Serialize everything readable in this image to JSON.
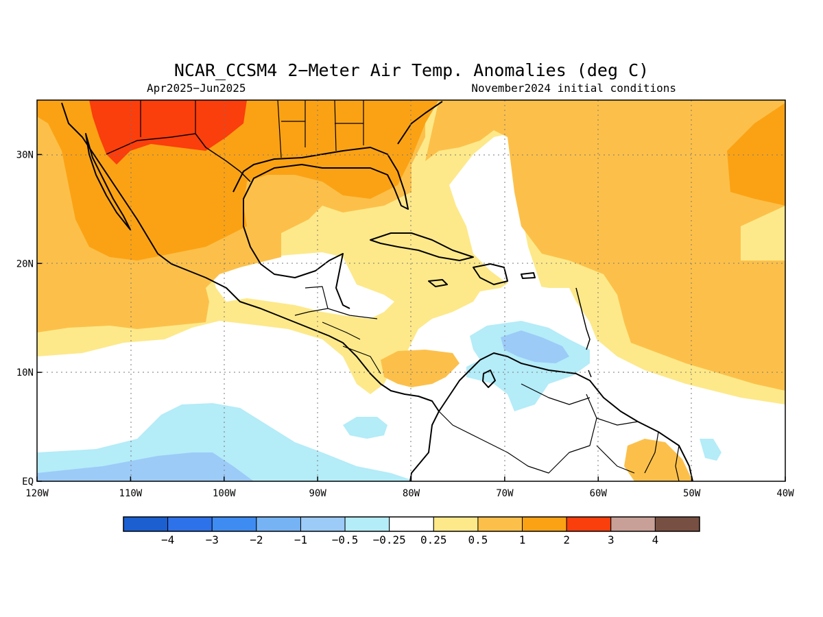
{
  "figure": {
    "title": "NCAR_CCSM4 2−Meter Air Temp. Anomalies (deg C)",
    "subtitle_left": "Apr2025−Jun2025",
    "subtitle_right": "November2024 initial conditions"
  },
  "map": {
    "lon_range": [
      -120,
      -40
    ],
    "lat_range": [
      0,
      35
    ],
    "x_ticks": [
      {
        "value": -120,
        "label": "120W"
      },
      {
        "value": -110,
        "label": "110W"
      },
      {
        "value": -100,
        "label": "100W"
      },
      {
        "value": -90,
        "label": "90W"
      },
      {
        "value": -80,
        "label": "80W"
      },
      {
        "value": -70,
        "label": "70W"
      },
      {
        "value": -60,
        "label": "60W"
      },
      {
        "value": -50,
        "label": "50W"
      },
      {
        "value": -40,
        "label": "40W"
      }
    ],
    "y_ticks": [
      {
        "value": 30,
        "label": "30N"
      },
      {
        "value": 20,
        "label": "20N"
      },
      {
        "value": 10,
        "label": "10N"
      },
      {
        "value": 0,
        "label": "EQ"
      }
    ],
    "grid": "dotted"
  },
  "colorbar": {
    "colors": [
      "#1b5fd1",
      "#2e72ea",
      "#3e8cf2",
      "#76b3f5",
      "#9ccbf8",
      "#b4ecf8",
      "#ffffff",
      "#fde98a",
      "#fcc04a",
      "#fba214",
      "#fa3e0c",
      "#c9a097",
      "#784f43"
    ],
    "labels": [
      "−4",
      "−3",
      "−2",
      "−1",
      "−0.5",
      "−0.25",
      "0.25",
      "0.5",
      "1",
      "2",
      "3",
      "4"
    ]
  }
}
